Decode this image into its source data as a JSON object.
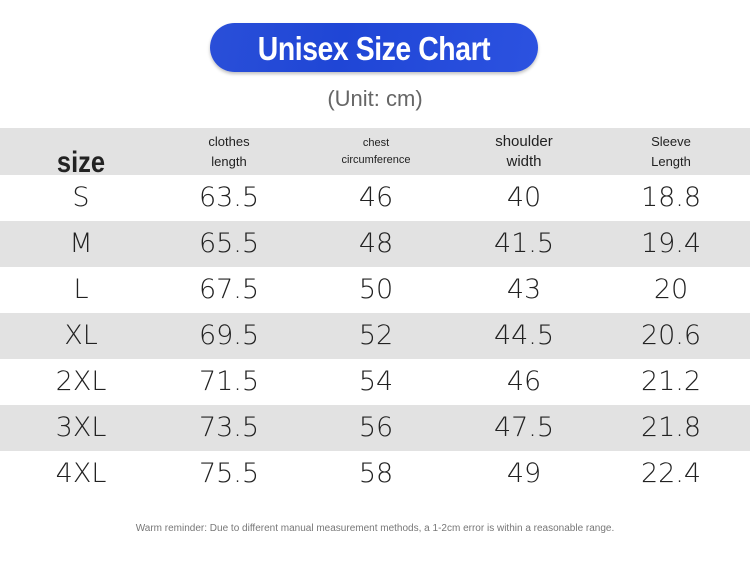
{
  "header": {
    "title": "Unisex Size Chart",
    "unit": "(Unit: cm)"
  },
  "table": {
    "columns": [
      [
        "size"
      ],
      [
        "clothes",
        "length"
      ],
      [
        "chest",
        "circumference"
      ],
      [
        "shoulder",
        "width"
      ],
      [
        "Sleeve",
        "Length"
      ]
    ],
    "rows": [
      [
        "S",
        "63.5",
        "46",
        "40",
        "18.8"
      ],
      [
        "M",
        "65.5",
        "48",
        "41.5",
        "19.4"
      ],
      [
        "L",
        "67.5",
        "50",
        "43",
        "20"
      ],
      [
        "XL",
        "69.5",
        "52",
        "44.5",
        "20.6"
      ],
      [
        "2XL",
        "71.5",
        "54",
        "46",
        "21.2"
      ],
      [
        "3XL",
        "73.5",
        "56",
        "47.5",
        "21.8"
      ],
      [
        "4XL",
        "75.5",
        "58",
        "49",
        "22.4"
      ]
    ]
  },
  "footer": {
    "note": "Warm reminder: Due to different manual measurement methods, a 1-2cm error is within a reasonable range."
  }
}
